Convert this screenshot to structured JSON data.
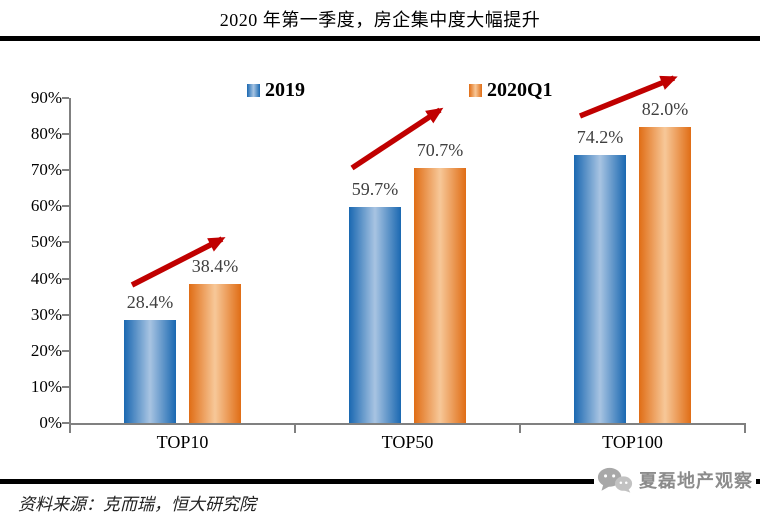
{
  "title": "2020 年第一季度，房企集中度大幅提升",
  "source_note": "资料来源：克而瑞，恒大研究院",
  "watermark": {
    "text": "夏磊地产观察",
    "icon": "chat-bubbles-icon"
  },
  "colors": {
    "bar_2019_edge": "#1A68B1",
    "bar_2019_center": "#A8C4E2",
    "bar_2020q1_edge": "#E06D15",
    "bar_2020q1_center": "#F7C899",
    "arrow": "#C00000",
    "axis": "#808080",
    "value_label": "#404040",
    "rule": "#000000",
    "watermark_gray": "#8C8C8C"
  },
  "legend": {
    "items": [
      {
        "label": "2019"
      },
      {
        "label": "2020Q1"
      }
    ]
  },
  "chart_data": {
    "type": "bar",
    "title": "2020 年第一季度，房企集中度大幅提升",
    "categories": [
      "TOP10",
      "TOP50",
      "TOP100"
    ],
    "series": [
      {
        "name": "2019",
        "values": [
          28.4,
          59.7,
          74.2
        ],
        "value_labels": [
          "28.4%",
          "59.7%",
          "74.2%"
        ]
      },
      {
        "name": "2020Q1",
        "values": [
          38.4,
          70.7,
          82.0
        ],
        "value_labels": [
          "38.4%",
          "70.7%",
          "82.0%"
        ]
      }
    ],
    "ylim": [
      0,
      90
    ],
    "ytick_step": 10,
    "ytick_labels": [
      "0%",
      "10%",
      "20%",
      "30%",
      "40%",
      "50%",
      "60%",
      "70%",
      "80%",
      "90%"
    ],
    "grid": false,
    "legend_position": "top",
    "annotations": [
      {
        "type": "arrow",
        "meaning": "increase",
        "x1": 132,
        "y1": 285,
        "x2": 222,
        "y2": 239
      },
      {
        "type": "arrow",
        "meaning": "increase",
        "x1": 352,
        "y1": 168,
        "x2": 440,
        "y2": 110
      },
      {
        "type": "arrow",
        "meaning": "increase",
        "x1": 580,
        "y1": 116,
        "x2": 674,
        "y2": 78
      }
    ]
  }
}
